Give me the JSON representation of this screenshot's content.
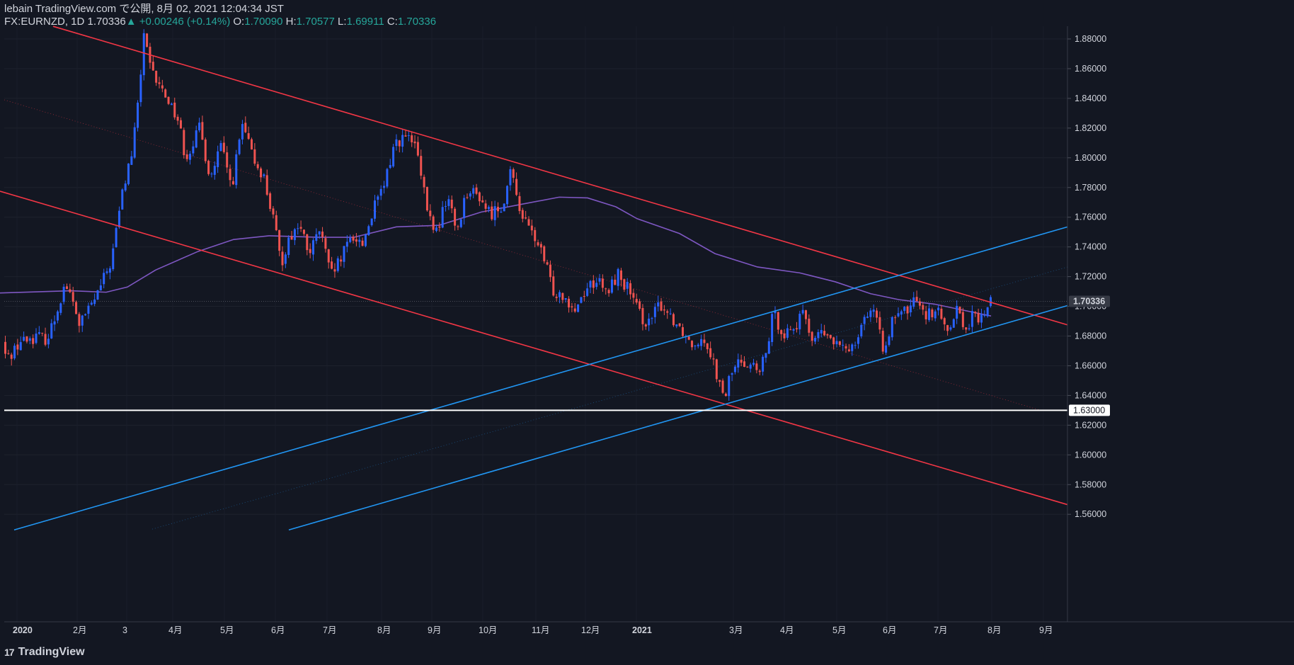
{
  "header": {
    "line1": "lebain TradingView.com で公開, 8月 02, 2021 12:04:34 JST",
    "symbol": "FX:EURNZD, 1D",
    "last": "1.70336",
    "change": "+0.00246 (+0.14%)",
    "o_label": "O:",
    "o": "1.70090",
    "h_label": "H:",
    "h": "1.70577",
    "l_label": "L:",
    "l": "1.69911",
    "c_label": "C:",
    "c": "1.70336"
  },
  "footer": {
    "brand": "TradingView",
    "mark": "17"
  },
  "colors": {
    "bg": "#131722",
    "up": "#2962ff",
    "down": "#ef5350",
    "ma": "#7e57c2",
    "channel_red": "#f23645",
    "channel_blue": "#2196f3"
  },
  "chart_data": {
    "type": "candlestick",
    "ylim": [
      1.55,
      1.89
    ],
    "y_ticks": [
      "1.88000",
      "1.86000",
      "1.84000",
      "1.82000",
      "1.80000",
      "1.78000",
      "1.76000",
      "1.74000",
      "1.72000",
      "1.70000",
      "1.68000",
      "1.66000",
      "1.64000",
      "1.62000",
      "1.60000",
      "1.58000",
      "1.56000"
    ],
    "x_labels": [
      "2020",
      "2月",
      "3",
      "4月",
      "5月",
      "6月",
      "7月",
      "8月",
      "9月",
      "10月",
      "11月",
      "12月",
      "2021",
      "3月",
      "4月",
      "5月",
      "6月",
      "7月",
      "8月",
      "9月"
    ],
    "last_price_label": "1.70336",
    "level_label": "1.63000",
    "path": [
      [
        0,
        1.688
      ],
      [
        12,
        1.664
      ],
      [
        30,
        1.676
      ],
      [
        55,
        1.68
      ],
      [
        70,
        1.678
      ],
      [
        80,
        1.692
      ],
      [
        95,
        1.716
      ],
      [
        105,
        1.703
      ],
      [
        115,
        1.688
      ],
      [
        125,
        1.695
      ],
      [
        140,
        1.708
      ],
      [
        160,
        1.73
      ],
      [
        175,
        1.775
      ],
      [
        190,
        1.805
      ],
      [
        200,
        1.845
      ],
      [
        206,
        1.885
      ],
      [
        210,
        1.872
      ],
      [
        215,
        1.86
      ],
      [
        225,
        1.85
      ],
      [
        240,
        1.84
      ],
      [
        255,
        1.825
      ],
      [
        265,
        1.8
      ],
      [
        285,
        1.82
      ],
      [
        300,
        1.786
      ],
      [
        315,
        1.808
      ],
      [
        330,
        1.78
      ],
      [
        345,
        1.822
      ],
      [
        360,
        1.8
      ],
      [
        375,
        1.788
      ],
      [
        390,
        1.756
      ],
      [
        400,
        1.728
      ],
      [
        410,
        1.745
      ],
      [
        425,
        1.755
      ],
      [
        440,
        1.735
      ],
      [
        455,
        1.752
      ],
      [
        470,
        1.72
      ],
      [
        485,
        1.732
      ],
      [
        500,
        1.748
      ],
      [
        515,
        1.742
      ],
      [
        530,
        1.765
      ],
      [
        545,
        1.78
      ],
      [
        560,
        1.81
      ],
      [
        575,
        1.814
      ],
      [
        590,
        1.808
      ],
      [
        600,
        1.78
      ],
      [
        610,
        1.758
      ],
      [
        620,
        1.75
      ],
      [
        635,
        1.775
      ],
      [
        648,
        1.75
      ],
      [
        662,
        1.778
      ],
      [
        680,
        1.774
      ],
      [
        695,
        1.762
      ],
      [
        712,
        1.768
      ],
      [
        725,
        1.79
      ],
      [
        735,
        1.77
      ],
      [
        745,
        1.756
      ],
      [
        760,
        1.745
      ],
      [
        772,
        1.73
      ],
      [
        785,
        1.71
      ],
      [
        800,
        1.708
      ],
      [
        815,
        1.698
      ],
      [
        830,
        1.712
      ],
      [
        845,
        1.718
      ],
      [
        860,
        1.708
      ],
      [
        875,
        1.722
      ],
      [
        890,
        1.712
      ],
      [
        905,
        1.695
      ],
      [
        920,
        1.688
      ],
      [
        935,
        1.702
      ],
      [
        950,
        1.694
      ],
      [
        965,
        1.685
      ],
      [
        980,
        1.675
      ],
      [
        995,
        1.68
      ],
      [
        1005,
        1.672
      ],
      [
        1015,
        1.655
      ],
      [
        1025,
        1.636
      ],
      [
        1035,
        1.655
      ],
      [
        1050,
        1.664
      ],
      [
        1065,
        1.661
      ],
      [
        1075,
        1.654
      ],
      [
        1085,
        1.668
      ],
      [
        1095,
        1.695
      ],
      [
        1110,
        1.682
      ],
      [
        1125,
        1.686
      ],
      [
        1140,
        1.695
      ],
      [
        1150,
        1.678
      ],
      [
        1165,
        1.682
      ],
      [
        1180,
        1.676
      ],
      [
        1195,
        1.67
      ],
      [
        1210,
        1.676
      ],
      [
        1220,
        1.69
      ],
      [
        1235,
        1.7
      ],
      [
        1250,
        1.672
      ],
      [
        1262,
        1.688
      ],
      [
        1275,
        1.694
      ],
      [
        1290,
        1.7
      ],
      [
        1300,
        1.708
      ],
      [
        1310,
        1.694
      ],
      [
        1325,
        1.698
      ],
      [
        1340,
        1.684
      ],
      [
        1355,
        1.7
      ],
      [
        1365,
        1.684
      ],
      [
        1378,
        1.694
      ],
      [
        1388,
        1.69
      ],
      [
        1400,
        1.703
      ]
    ],
    "moving_average": [
      [
        0,
        1.709
      ],
      [
        100,
        1.7105
      ],
      [
        150,
        1.7095
      ],
      [
        180,
        1.713
      ],
      [
        220,
        1.7245
      ],
      [
        280,
        1.737
      ],
      [
        330,
        1.745
      ],
      [
        380,
        1.7475
      ],
      [
        450,
        1.7465
      ],
      [
        500,
        1.7465
      ],
      [
        560,
        1.7535
      ],
      [
        620,
        1.7545
      ],
      [
        680,
        1.7635
      ],
      [
        740,
        1.769
      ],
      [
        790,
        1.7735
      ],
      [
        830,
        1.773
      ],
      [
        870,
        1.767
      ],
      [
        900,
        1.759
      ],
      [
        960,
        1.749
      ],
      [
        1010,
        1.7355
      ],
      [
        1070,
        1.7265
      ],
      [
        1130,
        1.7225
      ],
      [
        1180,
        1.7165
      ],
      [
        1230,
        1.7085
      ],
      [
        1270,
        1.7045
      ],
      [
        1320,
        1.7015
      ],
      [
        1400,
        1.6935
      ]
    ],
    "trendlines": [
      {
        "color": "red",
        "from": [
          75,
          1.8885
        ],
        "to": [
          1508,
          1.6875
        ]
      },
      {
        "color": "red",
        "from": [
          0,
          1.7775
        ],
        "to": [
          1508,
          1.5665
        ]
      },
      {
        "color": "blue",
        "from": [
          20,
          1.5495
        ],
        "to": [
          1508,
          1.7535
        ]
      },
      {
        "color": "blue",
        "from": [
          408,
          1.5495
        ],
        "to": [
          1508,
          1.7005
        ]
      }
    ],
    "horizontal_level": 1.63
  }
}
